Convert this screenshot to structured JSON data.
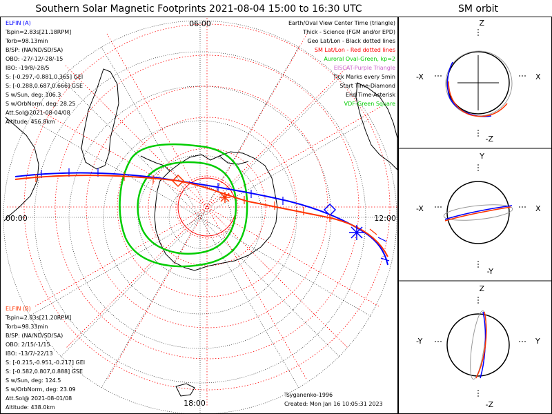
{
  "title": "Southern Solar Magnetic Footprints 2021-08-04 15:00 to 16:30 UTC",
  "orbit_title": "SM orbit",
  "hour_labels": {
    "top": "06:00",
    "left": "00:00",
    "right": "12:00",
    "bottom": "18:00"
  },
  "legend": [
    {
      "text": "Earth/Oval View Center Time (triangle)",
      "color": "#000000"
    },
    {
      "text": "Thick - Science (FGM and/or EPD)",
      "color": "#000000"
    },
    {
      "text": "Geo Lat/Lon - Black dotted lines",
      "color": "#000000"
    },
    {
      "text": "SM Lat/Lon - Red dotted lines",
      "color": "#ff0000"
    },
    {
      "text": "Auroral Oval-Green, kp=2",
      "color": "#00cc00"
    },
    {
      "text": "EISCAT-Purple Triangle",
      "color": "#cc66cc"
    },
    {
      "text": "Tick Marks every 5min",
      "color": "#000000"
    },
    {
      "text": "Start Time-Diamond",
      "color": "#000000"
    },
    {
      "text": "End Time-Asterisk",
      "color": "#000000"
    },
    {
      "text": "VDF-Green Square",
      "color": "#00cc00"
    }
  ],
  "probe_a": {
    "name": "ELFIN (A)",
    "color": "#0000ff",
    "lines": [
      "Tspin=2.83s[21.18RPM]",
      "Torb=98.13min",
      "B/SP: (NA/ND/SD/SA)",
      "OBO: -27/-12/-28/-15",
      "IBO: -19/8/-28/5",
      "S: [-0.297,-0.881,0.365] GEI",
      "S: [-0.288,0.687,0.666] GSE",
      "S w/Sun, deg: 106.3",
      "S w/OrbNorm, deg: 28.25",
      "Att.Sol@2021-08-04/08",
      "Altitude: 456.8km"
    ]
  },
  "probe_b": {
    "name": "ELFIN (B)",
    "color": "#ff3300",
    "lines": [
      "Tspin=2.83s[21.20RPM]",
      "Torb=98.33min",
      "B/SP: (NA/ND/SD/SA)",
      "OBO: 2/15/-1/15",
      "IBO: -13/7/-22/13",
      "S: [-0.215,-0.951,-0.217] GEI",
      "S: [-0.582,0.807,0.888] GSE",
      "S w/Sun, deg: 124.5",
      "S w/OrbNorm, deg: 23.09",
      "Att.Sol@ 2021-08-01/08",
      "Altitude: 438.0km"
    ]
  },
  "footer": {
    "credit": "Tsyganenko-1996",
    "created": "Created: Mon Jan 16 10:05:31 2023"
  },
  "orbit_panels": [
    {
      "top": "Z",
      "bottom": "-Z",
      "left": "-X",
      "right": "X"
    },
    {
      "top": "Y",
      "bottom": "-Y",
      "left": "-X",
      "right": "X"
    },
    {
      "top": "Z",
      "bottom": "-Z",
      "left": "-Y",
      "right": "Y"
    }
  ],
  "colors": {
    "probe_a": "#0000ff",
    "probe_b": "#ff3300",
    "auroral_oval": "#00cc00",
    "sm_grid": "#ff0000",
    "geo_grid": "#000000"
  },
  "chart_data": {
    "type": "polar footprint map",
    "hemisphere": "south",
    "grid_spacing_deg": 10,
    "kp": 2,
    "tick_interval_min": 5,
    "start_marker": "diamond",
    "end_marker": "asterisk"
  }
}
